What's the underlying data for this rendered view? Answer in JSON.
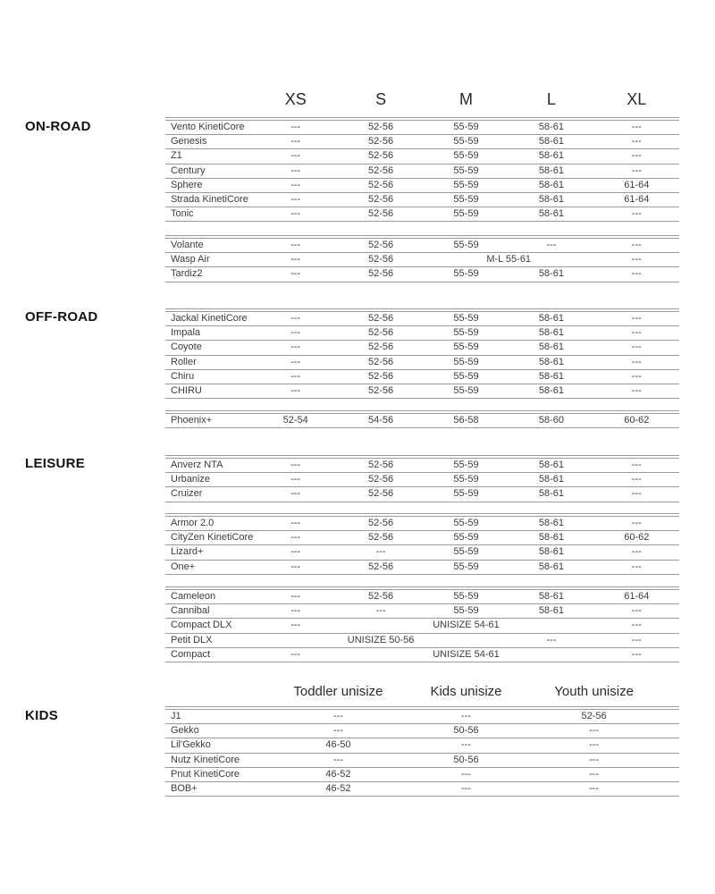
{
  "page_type": "helmet-size-chart",
  "size_header": {
    "cells": [
      {
        "text": "XS",
        "span": 1
      },
      {
        "text": "S",
        "span": 1
      },
      {
        "text": "M",
        "span": 1
      },
      {
        "text": "L",
        "span": 1
      },
      {
        "text": "XL",
        "span": 1
      }
    ]
  },
  "kids_header": {
    "cells": [
      {
        "text": "Toddler unisize",
        "span": 2
      },
      {
        "text": "Kids unisize",
        "span": 1
      },
      {
        "text": "Youth unisize",
        "span": 2
      }
    ]
  },
  "sections": [
    {
      "label": "ON-ROAD"
    },
    {
      "label": "OFF-ROAD"
    },
    {
      "label": "LEISURE"
    },
    {
      "label": "KIDS"
    }
  ],
  "groups": [
    {
      "rows": [
        {
          "name": "Vento KinetiCore",
          "cells": [
            {
              "text": "---"
            },
            {
              "text": "52-56"
            },
            {
              "text": "55-59"
            },
            {
              "text": "58-61"
            },
            {
              "text": "---"
            }
          ]
        },
        {
          "name": "Genesis",
          "cells": [
            {
              "text": "---"
            },
            {
              "text": "52-56"
            },
            {
              "text": "55-59"
            },
            {
              "text": "58-61"
            },
            {
              "text": "---"
            }
          ]
        },
        {
          "name": "Z1",
          "cells": [
            {
              "text": "---"
            },
            {
              "text": "52-56"
            },
            {
              "text": "55-59"
            },
            {
              "text": "58-61"
            },
            {
              "text": "---"
            }
          ]
        },
        {
          "name": "Century",
          "cells": [
            {
              "text": "---"
            },
            {
              "text": "52-56"
            },
            {
              "text": "55-59"
            },
            {
              "text": "58-61"
            },
            {
              "text": "---"
            }
          ]
        },
        {
          "name": "Sphere",
          "cells": [
            {
              "text": "---"
            },
            {
              "text": "52-56"
            },
            {
              "text": "55-59"
            },
            {
              "text": "58-61"
            },
            {
              "text": "61-64"
            }
          ]
        },
        {
          "name": "Strada KinetiCore",
          "cells": [
            {
              "text": "---"
            },
            {
              "text": "52-56"
            },
            {
              "text": "55-59"
            },
            {
              "text": "58-61"
            },
            {
              "text": "61-64"
            }
          ]
        },
        {
          "name": "Tonic",
          "cells": [
            {
              "text": "---"
            },
            {
              "text": "52-56"
            },
            {
              "text": "55-59"
            },
            {
              "text": "58-61"
            },
            {
              "text": "---"
            }
          ]
        }
      ]
    },
    {
      "rows": [
        {
          "name": "Volante",
          "cells": [
            {
              "text": "---"
            },
            {
              "text": "52-56"
            },
            {
              "text": "55-59"
            },
            {
              "text": "---"
            },
            {
              "text": "---"
            }
          ]
        },
        {
          "name": "Wasp Air",
          "cells": [
            {
              "text": "---"
            },
            {
              "text": "52-56"
            },
            {
              "text": "M-L 55-61",
              "span": 2
            },
            {
              "text": "---"
            }
          ]
        },
        {
          "name": "Tardiz2",
          "cells": [
            {
              "text": "---"
            },
            {
              "text": "52-56"
            },
            {
              "text": "55-59"
            },
            {
              "text": "58-61"
            },
            {
              "text": "---"
            }
          ]
        }
      ]
    },
    {
      "rows": [
        {
          "name": "Jackal KinetiCore",
          "cells": [
            {
              "text": "---"
            },
            {
              "text": "52-56"
            },
            {
              "text": "55-59"
            },
            {
              "text": "58-61"
            },
            {
              "text": "---"
            }
          ]
        },
        {
          "name": "Impala",
          "cells": [
            {
              "text": "---"
            },
            {
              "text": "52-56"
            },
            {
              "text": "55-59"
            },
            {
              "text": "58-61"
            },
            {
              "text": "---"
            }
          ]
        },
        {
          "name": "Coyote",
          "cells": [
            {
              "text": "---"
            },
            {
              "text": "52-56"
            },
            {
              "text": "55-59"
            },
            {
              "text": "58-61"
            },
            {
              "text": "---"
            }
          ]
        },
        {
          "name": "Roller",
          "cells": [
            {
              "text": "---"
            },
            {
              "text": "52-56"
            },
            {
              "text": "55-59"
            },
            {
              "text": "58-61"
            },
            {
              "text": "---"
            }
          ]
        },
        {
          "name": "Chiru",
          "cells": [
            {
              "text": "---"
            },
            {
              "text": "52-56"
            },
            {
              "text": "55-59"
            },
            {
              "text": "58-61"
            },
            {
              "text": "---"
            }
          ]
        },
        {
          "name": "CHIRU",
          "cells": [
            {
              "text": "---"
            },
            {
              "text": "52-56"
            },
            {
              "text": "55-59"
            },
            {
              "text": "58-61"
            },
            {
              "text": "---"
            }
          ]
        }
      ]
    },
    {
      "rows": [
        {
          "name": "Phoenix+",
          "cells": [
            {
              "text": "52-54"
            },
            {
              "text": "54-56"
            },
            {
              "text": "56-58"
            },
            {
              "text": "58-60"
            },
            {
              "text": "60-62"
            }
          ]
        }
      ]
    },
    {
      "rows": [
        {
          "name": "Anverz NTA",
          "cells": [
            {
              "text": "---"
            },
            {
              "text": "52-56"
            },
            {
              "text": "55-59"
            },
            {
              "text": "58-61"
            },
            {
              "text": "---"
            }
          ]
        },
        {
          "name": "Urbanize",
          "cells": [
            {
              "text": "---"
            },
            {
              "text": "52-56"
            },
            {
              "text": "55-59"
            },
            {
              "text": "58-61"
            },
            {
              "text": "---"
            }
          ]
        },
        {
          "name": "Cruizer",
          "cells": [
            {
              "text": "---"
            },
            {
              "text": "52-56"
            },
            {
              "text": "55-59"
            },
            {
              "text": "58-61"
            },
            {
              "text": "---"
            }
          ]
        }
      ]
    },
    {
      "rows": [
        {
          "name": "Armor 2.0",
          "cells": [
            {
              "text": "---"
            },
            {
              "text": "52-56"
            },
            {
              "text": "55-59"
            },
            {
              "text": "58-61"
            },
            {
              "text": "---"
            }
          ]
        },
        {
          "name": "CityZen KinetiCore",
          "cells": [
            {
              "text": "---"
            },
            {
              "text": "52-56"
            },
            {
              "text": "55-59"
            },
            {
              "text": "58-61"
            },
            {
              "text": "60-62"
            }
          ]
        },
        {
          "name": "Lizard+",
          "cells": [
            {
              "text": "---"
            },
            {
              "text": "---"
            },
            {
              "text": "55-59"
            },
            {
              "text": "58-61"
            },
            {
              "text": "---"
            }
          ]
        },
        {
          "name": "One+",
          "cells": [
            {
              "text": "---"
            },
            {
              "text": "52-56"
            },
            {
              "text": "55-59"
            },
            {
              "text": "58-61"
            },
            {
              "text": "---"
            }
          ]
        }
      ]
    },
    {
      "rows": [
        {
          "name": "Cameleon",
          "cells": [
            {
              "text": "---"
            },
            {
              "text": "52-56"
            },
            {
              "text": "55-59"
            },
            {
              "text": "58-61"
            },
            {
              "text": "61-64"
            }
          ]
        },
        {
          "name": "Cannibal",
          "cells": [
            {
              "text": "---"
            },
            {
              "text": "---"
            },
            {
              "text": "55-59"
            },
            {
              "text": "58-61"
            },
            {
              "text": "---"
            }
          ]
        },
        {
          "name": "Compact DLX",
          "cells": [
            {
              "text": "---"
            },
            {
              "text": "UNISIZE 54-61",
              "span": 3
            },
            {
              "text": "---"
            }
          ]
        },
        {
          "name": "Petit DLX",
          "cells": [
            {
              "text": "UNISIZE 50-56",
              "span": 3
            },
            {
              "text": "---"
            },
            {
              "text": "---"
            }
          ]
        },
        {
          "name": "Compact",
          "cells": [
            {
              "text": "---"
            },
            {
              "text": "UNISIZE 54-61",
              "span": 3
            },
            {
              "text": "---"
            }
          ]
        }
      ]
    },
    {
      "rows": [
        {
          "name": "J1",
          "cells": [
            {
              "text": "---",
              "span": 2
            },
            {
              "text": "---"
            },
            {
              "text": "52-56",
              "span": 2
            }
          ]
        },
        {
          "name": "Gekko",
          "cells": [
            {
              "text": "---",
              "span": 2
            },
            {
              "text": "50-56"
            },
            {
              "text": "---",
              "span": 2
            }
          ]
        },
        {
          "name": "Lil'Gekko",
          "cells": [
            {
              "text": "46-50",
              "span": 2
            },
            {
              "text": "---"
            },
            {
              "text": "---",
              "span": 2
            }
          ]
        },
        {
          "name": "Nutz KinetiCore",
          "cells": [
            {
              "text": "---",
              "span": 2
            },
            {
              "text": "50-56"
            },
            {
              "text": "---",
              "span": 2
            }
          ]
        },
        {
          "name": "Pnut KinetiCore",
          "cells": [
            {
              "text": "46-52",
              "span": 2
            },
            {
              "text": "---"
            },
            {
              "text": "---",
              "span": 2
            }
          ]
        },
        {
          "name": "BOB+",
          "cells": [
            {
              "text": "46-52",
              "span": 2
            },
            {
              "text": "---"
            },
            {
              "text": "---",
              "span": 2
            }
          ]
        }
      ]
    }
  ],
  "colors": {
    "rule": "#9b9b9b",
    "cell_text": "#3c3c3c",
    "header_text": "#2b2b2b",
    "section_text": "#121212"
  }
}
